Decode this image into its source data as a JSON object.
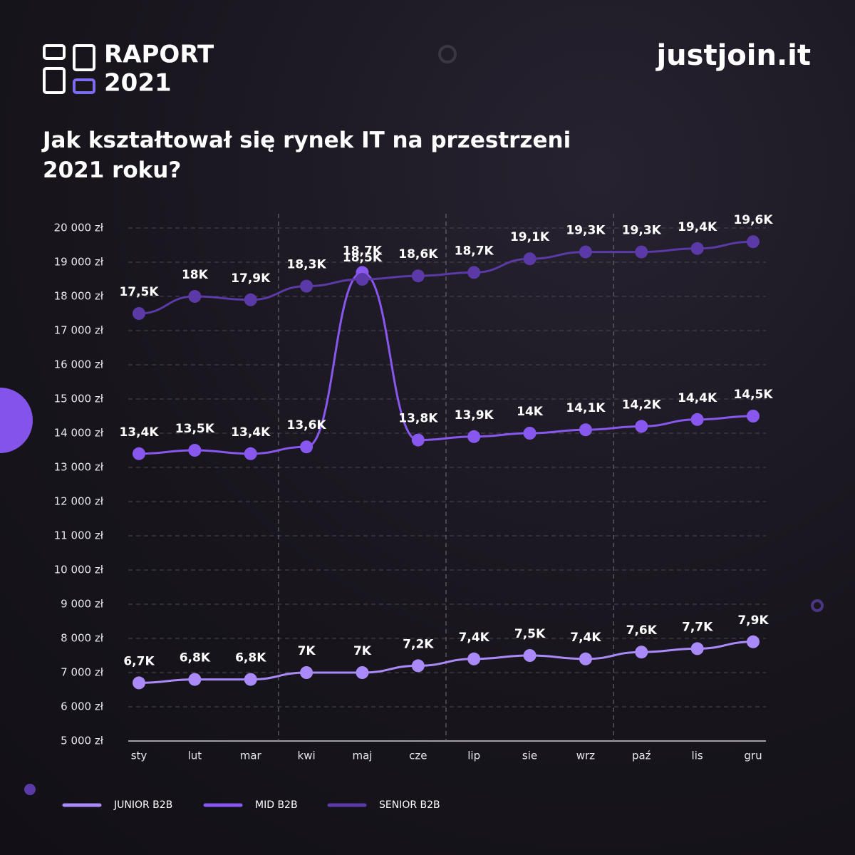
{
  "header": {
    "report": "RAPORT",
    "year": "2021",
    "site": "justjoin.it"
  },
  "chart_data": {
    "type": "line",
    "title": "Jak kształtował się rynek IT na przestrzeni 2021 roku?",
    "categories": [
      "sty",
      "lut",
      "mar",
      "kwi",
      "maj",
      "cze",
      "lip",
      "sie",
      "wrz",
      "paź",
      "lis",
      "gru"
    ],
    "series": [
      {
        "name": "JUNIOR B2B",
        "color": "#a98af8",
        "values": [
          6700,
          6800,
          6800,
          7000,
          7000,
          7200,
          7400,
          7500,
          7400,
          7600,
          7700,
          7900
        ],
        "value_labels": [
          "6,7K",
          "6,8K",
          "6,8K",
          "7K",
          "7K",
          "7,2K",
          "7,4K",
          "7,5K",
          "7,4K",
          "7,6K",
          "7,7K",
          "7,9K"
        ]
      },
      {
        "name": "MID B2B",
        "color": "#8757ee",
        "values": [
          13400,
          13500,
          13400,
          13600,
          18700,
          13800,
          13900,
          14000,
          14100,
          14200,
          14400,
          14500
        ],
        "value_labels": [
          "13,4K",
          "13,5K",
          "13,4K",
          "13,6K",
          "18,7K",
          "13,8K",
          "13,9K",
          "14K",
          "14,1K",
          "14,2K",
          "14,4K",
          "14,5K"
        ]
      },
      {
        "name": "SENIOR B2B",
        "color": "#5b39a6",
        "values": [
          17500,
          18000,
          17900,
          18300,
          18500,
          18600,
          18700,
          19100,
          19300,
          19300,
          19400,
          19600
        ],
        "value_labels": [
          "17,5K",
          "18K",
          "17,9K",
          "18,3K",
          "18,5K",
          "18,6K",
          "18,7K",
          "19,1K",
          "19,3K",
          "19,3K",
          "19,4K",
          "19,6K"
        ]
      }
    ],
    "ylim": [
      5000,
      20000
    ],
    "yticks": [
      {
        "value": 5000,
        "label": "5 000 zł"
      },
      {
        "value": 6000,
        "label": "6 000 zł"
      },
      {
        "value": 7000,
        "label": "7 000 zł"
      },
      {
        "value": 8000,
        "label": "8 000 zł"
      },
      {
        "value": 9000,
        "label": "9 000 zł"
      },
      {
        "value": 10000,
        "label": "10 000 zł"
      },
      {
        "value": 11000,
        "label": "11 000 zł"
      },
      {
        "value": 12000,
        "label": "12 000 zł"
      },
      {
        "value": 13000,
        "label": "13 000 zł"
      },
      {
        "value": 14000,
        "label": "14 000 zł"
      },
      {
        "value": 15000,
        "label": "15 000 zł"
      },
      {
        "value": 16000,
        "label": "16 000 zł"
      },
      {
        "value": 17000,
        "label": "17 000 zł"
      },
      {
        "value": 18000,
        "label": "18 000 zł"
      },
      {
        "value": 19000,
        "label": "19 000 zł"
      },
      {
        "value": 20000,
        "label": "20 000 zł"
      }
    ],
    "grid": true
  }
}
